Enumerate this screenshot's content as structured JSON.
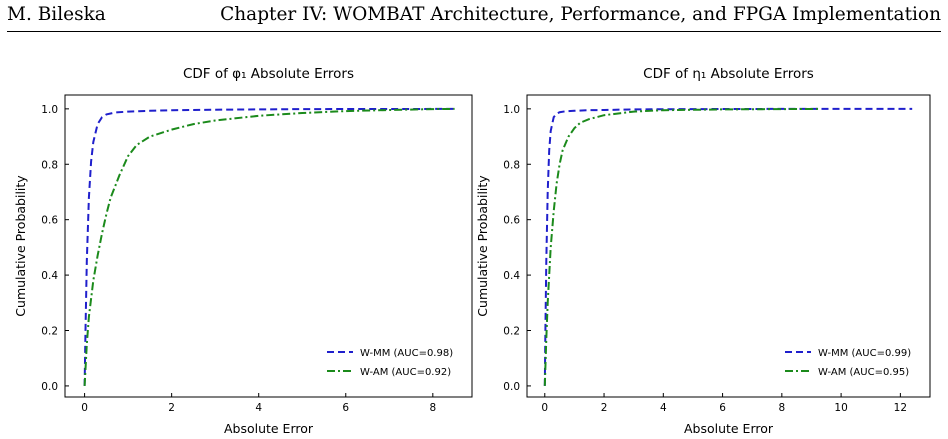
{
  "header": {
    "author": "M. Bileska",
    "chapter": "Chapter IV: WOMBAT Architecture, Performance, and FPGA Implementation"
  },
  "chart_data": [
    {
      "type": "line",
      "title": "CDF of φ₁ Absolute Errors",
      "xlabel": "Absolute Error",
      "ylabel": "Cumulative Probability",
      "xlim": [
        -0.45,
        8.9
      ],
      "ylim": [
        -0.04,
        1.05
      ],
      "xticks": [
        0,
        2,
        4,
        6,
        8
      ],
      "yticks": [
        0.0,
        0.2,
        0.4,
        0.6,
        0.8,
        1.0
      ],
      "grid": false,
      "legend_position": "bottom-right",
      "series": [
        {
          "name": "W-MM (AUC=0.98)",
          "color": "#1f1fcc",
          "dash": "dashed",
          "x": [
            0,
            0.02,
            0.05,
            0.1,
            0.15,
            0.2,
            0.3,
            0.4,
            0.5,
            0.7,
            1.0,
            1.5,
            2,
            3,
            5,
            8.5
          ],
          "y": [
            0,
            0.2,
            0.45,
            0.68,
            0.81,
            0.88,
            0.945,
            0.97,
            0.98,
            0.987,
            0.99,
            0.993,
            0.995,
            0.997,
            0.999,
            1.0
          ]
        },
        {
          "name": "W-AM (AUC=0.92)",
          "color": "#1b8a1b",
          "dash": "dashdot",
          "x": [
            0,
            0.05,
            0.1,
            0.2,
            0.3,
            0.4,
            0.5,
            0.6,
            0.7,
            0.8,
            1.0,
            1.2,
            1.5,
            2,
            2.5,
            3,
            4,
            5,
            6,
            7,
            8,
            8.5
          ],
          "y": [
            0,
            0.15,
            0.25,
            0.38,
            0.47,
            0.55,
            0.62,
            0.68,
            0.72,
            0.76,
            0.83,
            0.87,
            0.9,
            0.925,
            0.945,
            0.958,
            0.975,
            0.985,
            0.992,
            0.996,
            0.999,
            1.0
          ]
        }
      ]
    },
    {
      "type": "line",
      "title": "CDF of η₁ Absolute Errors",
      "xlabel": "Absolute Error",
      "ylabel": "Cumulative Probability",
      "xlim": [
        -0.6,
        13.0
      ],
      "ylim": [
        -0.04,
        1.05
      ],
      "xticks": [
        0,
        2,
        4,
        6,
        8,
        10,
        12
      ],
      "yticks": [
        0.0,
        0.2,
        0.4,
        0.6,
        0.8,
        1.0
      ],
      "grid": false,
      "legend_position": "bottom-right",
      "series": [
        {
          "name": "W-MM (AUC=0.99)",
          "color": "#1f1fcc",
          "dash": "dashed",
          "x": [
            0,
            0.02,
            0.05,
            0.1,
            0.15,
            0.2,
            0.3,
            0.4,
            0.5,
            0.7,
            1.0,
            1.5,
            2,
            3,
            5,
            8,
            12.4
          ],
          "y": [
            0,
            0.2,
            0.45,
            0.7,
            0.85,
            0.92,
            0.97,
            0.982,
            0.988,
            0.991,
            0.993,
            0.995,
            0.996,
            0.998,
            0.999,
            1.0,
            1.0
          ]
        },
        {
          "name": "W-AM (AUC=0.95)",
          "color": "#1b8a1b",
          "dash": "dashdot",
          "x": [
            0,
            0.05,
            0.1,
            0.2,
            0.3,
            0.4,
            0.5,
            0.6,
            0.8,
            1.0,
            1.2,
            1.5,
            2,
            3,
            4,
            6,
            8,
            9.3
          ],
          "y": [
            0,
            0.17,
            0.3,
            0.5,
            0.63,
            0.73,
            0.8,
            0.85,
            0.9,
            0.93,
            0.95,
            0.963,
            0.977,
            0.99,
            0.995,
            0.998,
            0.999,
            1.0
          ]
        }
      ]
    }
  ]
}
